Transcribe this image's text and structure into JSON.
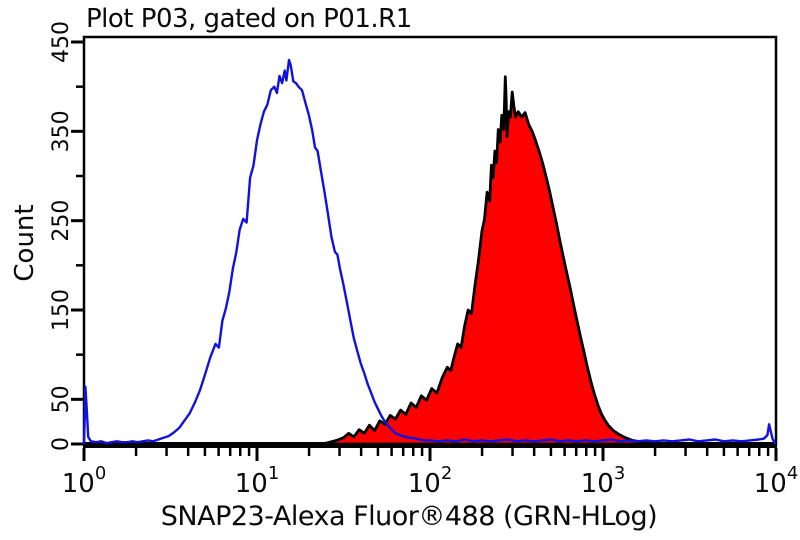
{
  "title": "Plot P03, gated on P01.R1",
  "axes": {
    "x": {
      "label": "SNAP23-Alexa Fluor®488 (GRN-HLog)",
      "scale": "log10",
      "base_label": "10",
      "tick_exponents": [
        0,
        1,
        2,
        3,
        4
      ],
      "range": [
        1,
        10000
      ]
    },
    "y": {
      "label": "Count",
      "range": [
        0,
        450
      ],
      "major_ticks": [
        450,
        350,
        250,
        150,
        50,
        0
      ],
      "minor_ticks": [
        400,
        300,
        200,
        100
      ]
    }
  },
  "colors": {
    "blue_line": "#1212e0",
    "red_fill": "#fe0000",
    "black_outline": "#000000",
    "axis": "#000000",
    "text": "#0a0a0a",
    "background": "#ffffff"
  },
  "chart_data": {
    "type": "area",
    "subtype": "flow-cytometry-overlay-histogram",
    "title": "Plot P03, gated on P01.R1",
    "xlabel": "SNAP23-Alexa Fluor®488 (GRN-HLog)",
    "ylabel": "Count",
    "x_scale": "log10",
    "xlim": [
      1,
      10000
    ],
    "ylim": [
      0,
      450
    ],
    "grid": false,
    "legend": false,
    "series": [
      {
        "name": "control-open-histogram",
        "style": "open",
        "line_color": "#1212e0",
        "fill_color": "none",
        "peak": {
          "x": 15,
          "count": 430
        },
        "edge_spikes": [
          {
            "x": 1,
            "count": 64
          },
          {
            "x": 9100,
            "count": 22
          }
        ],
        "points_log10x_count": [
          [
            0.0,
            0
          ],
          [
            0.004,
            28
          ],
          [
            0.008,
            64
          ],
          [
            0.016,
            38
          ],
          [
            0.024,
            8
          ],
          [
            0.04,
            3
          ],
          [
            0.07,
            2
          ],
          [
            0.1,
            3
          ],
          [
            0.13,
            1
          ],
          [
            0.16,
            2
          ],
          [
            0.19,
            3
          ],
          [
            0.22,
            2
          ],
          [
            0.25,
            2
          ],
          [
            0.28,
            3
          ],
          [
            0.31,
            2
          ],
          [
            0.34,
            3
          ],
          [
            0.37,
            4
          ],
          [
            0.4,
            3
          ],
          [
            0.43,
            5
          ],
          [
            0.46,
            7
          ],
          [
            0.49,
            9
          ],
          [
            0.52,
            13
          ],
          [
            0.55,
            18
          ],
          [
            0.58,
            26
          ],
          [
            0.61,
            34
          ],
          [
            0.64,
            46
          ],
          [
            0.67,
            60
          ],
          [
            0.7,
            78
          ],
          [
            0.73,
            97
          ],
          [
            0.76,
            112
          ],
          [
            0.78,
            108
          ],
          [
            0.8,
            138
          ],
          [
            0.82,
            152
          ],
          [
            0.84,
            170
          ],
          [
            0.86,
            196
          ],
          [
            0.88,
            214
          ],
          [
            0.9,
            240
          ],
          [
            0.92,
            252
          ],
          [
            0.94,
            248
          ],
          [
            0.96,
            298
          ],
          [
            0.98,
            312
          ],
          [
            1.0,
            340
          ],
          [
            1.02,
            358
          ],
          [
            1.04,
            372
          ],
          [
            1.06,
            380
          ],
          [
            1.08,
            396
          ],
          [
            1.1,
            400
          ],
          [
            1.115,
            393
          ],
          [
            1.13,
            412
          ],
          [
            1.145,
            404
          ],
          [
            1.16,
            418
          ],
          [
            1.17,
            407
          ],
          [
            1.185,
            430
          ],
          [
            1.195,
            424
          ],
          [
            1.21,
            406
          ],
          [
            1.225,
            404
          ],
          [
            1.24,
            400
          ],
          [
            1.26,
            396
          ],
          [
            1.28,
            382
          ],
          [
            1.3,
            368
          ],
          [
            1.32,
            350
          ],
          [
            1.335,
            332
          ],
          [
            1.35,
            328
          ],
          [
            1.37,
            305
          ],
          [
            1.39,
            282
          ],
          [
            1.41,
            258
          ],
          [
            1.43,
            232
          ],
          [
            1.45,
            215
          ],
          [
            1.465,
            212
          ],
          [
            1.48,
            196
          ],
          [
            1.5,
            178
          ],
          [
            1.52,
            158
          ],
          [
            1.54,
            138
          ],
          [
            1.56,
            118
          ],
          [
            1.58,
            104
          ],
          [
            1.6,
            90
          ],
          [
            1.62,
            79
          ],
          [
            1.64,
            67
          ],
          [
            1.66,
            57
          ],
          [
            1.68,
            47
          ],
          [
            1.7,
            39
          ],
          [
            1.72,
            31
          ],
          [
            1.74,
            25
          ],
          [
            1.76,
            20
          ],
          [
            1.78,
            16
          ],
          [
            1.8,
            12
          ],
          [
            1.84,
            9
          ],
          [
            1.88,
            7
          ],
          [
            1.92,
            6
          ],
          [
            1.96,
            4
          ],
          [
            2.0,
            4
          ],
          [
            2.05,
            3
          ],
          [
            2.1,
            4
          ],
          [
            2.15,
            3
          ],
          [
            2.2,
            5
          ],
          [
            2.25,
            3
          ],
          [
            2.3,
            4
          ],
          [
            2.35,
            3
          ],
          [
            2.4,
            4
          ],
          [
            2.45,
            5
          ],
          [
            2.5,
            3
          ],
          [
            2.55,
            4
          ],
          [
            2.6,
            3
          ],
          [
            2.65,
            4
          ],
          [
            2.7,
            5
          ],
          [
            2.75,
            3
          ],
          [
            2.8,
            4
          ],
          [
            2.85,
            3
          ],
          [
            2.9,
            4
          ],
          [
            2.95,
            3
          ],
          [
            3.0,
            4
          ],
          [
            3.05,
            5
          ],
          [
            3.1,
            3
          ],
          [
            3.15,
            4
          ],
          [
            3.2,
            3
          ],
          [
            3.25,
            4
          ],
          [
            3.3,
            3
          ],
          [
            3.35,
            4
          ],
          [
            3.4,
            3
          ],
          [
            3.45,
            4
          ],
          [
            3.5,
            5
          ],
          [
            3.55,
            3
          ],
          [
            3.6,
            4
          ],
          [
            3.65,
            5
          ],
          [
            3.7,
            3
          ],
          [
            3.75,
            4
          ],
          [
            3.8,
            3
          ],
          [
            3.85,
            4
          ],
          [
            3.9,
            5
          ],
          [
            3.93,
            6
          ],
          [
            3.95,
            10
          ],
          [
            3.96,
            22
          ],
          [
            3.97,
            14
          ],
          [
            3.98,
            6
          ],
          [
            3.99,
            2
          ],
          [
            4.0,
            0
          ]
        ]
      },
      {
        "name": "snap23-stained-filled-histogram",
        "style": "filled",
        "line_color": "#000000",
        "fill_color": "#fe0000",
        "peak": {
          "x": 272,
          "count": 411
        },
        "points_log10x_count": [
          [
            1.38,
            0
          ],
          [
            1.42,
            2
          ],
          [
            1.46,
            4
          ],
          [
            1.5,
            7
          ],
          [
            1.53,
            12
          ],
          [
            1.56,
            8
          ],
          [
            1.59,
            16
          ],
          [
            1.62,
            12
          ],
          [
            1.65,
            21
          ],
          [
            1.68,
            15
          ],
          [
            1.71,
            26
          ],
          [
            1.74,
            22
          ],
          [
            1.77,
            32
          ],
          [
            1.8,
            28
          ],
          [
            1.83,
            38
          ],
          [
            1.86,
            33
          ],
          [
            1.89,
            46
          ],
          [
            1.92,
            41
          ],
          [
            1.95,
            54
          ],
          [
            1.98,
            49
          ],
          [
            2.01,
            62
          ],
          [
            2.04,
            57
          ],
          [
            2.07,
            74
          ],
          [
            2.1,
            86
          ],
          [
            2.12,
            82
          ],
          [
            2.14,
            98
          ],
          [
            2.16,
            112
          ],
          [
            2.18,
            108
          ],
          [
            2.2,
            132
          ],
          [
            2.22,
            150
          ],
          [
            2.24,
            146
          ],
          [
            2.26,
            178
          ],
          [
            2.28,
            205
          ],
          [
            2.3,
            238
          ],
          [
            2.315,
            252
          ],
          [
            2.33,
            282
          ],
          [
            2.345,
            272
          ],
          [
            2.355,
            312
          ],
          [
            2.365,
            298
          ],
          [
            2.375,
            328
          ],
          [
            2.385,
            315
          ],
          [
            2.395,
            352
          ],
          [
            2.405,
            338
          ],
          [
            2.415,
            368
          ],
          [
            2.425,
            352
          ],
          [
            2.43,
            376
          ],
          [
            2.435,
            411
          ],
          [
            2.44,
            388
          ],
          [
            2.445,
            344
          ],
          [
            2.455,
            372
          ],
          [
            2.465,
            366
          ],
          [
            2.475,
            394
          ],
          [
            2.485,
            378
          ],
          [
            2.495,
            366
          ],
          [
            2.51,
            372
          ],
          [
            2.53,
            366
          ],
          [
            2.55,
            371
          ],
          [
            2.57,
            358
          ],
          [
            2.59,
            350
          ],
          [
            2.61,
            340
          ],
          [
            2.63,
            328
          ],
          [
            2.65,
            315
          ],
          [
            2.67,
            300
          ],
          [
            2.69,
            284
          ],
          [
            2.71,
            266
          ],
          [
            2.73,
            248
          ],
          [
            2.75,
            228
          ],
          [
            2.77,
            210
          ],
          [
            2.79,
            192
          ],
          [
            2.81,
            175
          ],
          [
            2.83,
            156
          ],
          [
            2.85,
            138
          ],
          [
            2.87,
            120
          ],
          [
            2.89,
            103
          ],
          [
            2.91,
            86
          ],
          [
            2.93,
            70
          ],
          [
            2.95,
            56
          ],
          [
            2.97,
            44
          ],
          [
            2.99,
            34
          ],
          [
            3.01,
            27
          ],
          [
            3.03,
            21
          ],
          [
            3.06,
            15
          ],
          [
            3.09,
            11
          ],
          [
            3.13,
            7
          ],
          [
            3.17,
            4
          ],
          [
            3.23,
            2
          ],
          [
            3.32,
            1
          ],
          [
            3.42,
            0
          ]
        ]
      }
    ]
  }
}
